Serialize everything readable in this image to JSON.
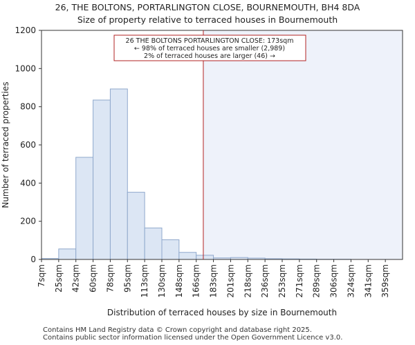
{
  "chart_data": {
    "type": "bar",
    "title": "26, THE BOLTONS, PORTARLINGTON CLOSE, BOURNEMOUTH, BH4 8DA",
    "subtitle": "Size of property relative to terraced houses in Bournemouth",
    "xlabel": "Distribution of terraced houses by size in Bournemouth",
    "ylabel": "Number of terraced properties",
    "ylim": [
      0,
      1200
    ],
    "yticks": [
      0,
      200,
      400,
      600,
      800,
      1000,
      1200
    ],
    "categories": [
      "7sqm",
      "25sqm",
      "42sqm",
      "60sqm",
      "78sqm",
      "95sqm",
      "113sqm",
      "130sqm",
      "148sqm",
      "166sqm",
      "183sqm",
      "201sqm",
      "218sqm",
      "236sqm",
      "253sqm",
      "271sqm",
      "289sqm",
      "306sqm",
      "324sqm",
      "341sqm",
      "359sqm"
    ],
    "values": [
      5,
      55,
      535,
      835,
      893,
      352,
      165,
      103,
      37,
      22,
      8,
      10,
      7,
      4,
      3,
      2,
      1,
      1,
      0,
      0,
      0
    ],
    "marker": {
      "value_sqm": 173,
      "line1": "26 THE BOLTONS PORTARLINGTON CLOSE: 173sqm",
      "line2": "← 98% of terraced houses are smaller (2,989)",
      "line3": "2% of terraced houses are larger (46) →"
    },
    "colors": {
      "bar_fill": "#dce6f4",
      "bar_edge": "#8fa8cc",
      "highlight": "#eef2fa",
      "marker": "#b22222"
    }
  },
  "footer": {
    "line1": "Contains HM Land Registry data © Crown copyright and database right 2025.",
    "line2": "Contains public sector information licensed under the Open Government Licence v3.0."
  }
}
